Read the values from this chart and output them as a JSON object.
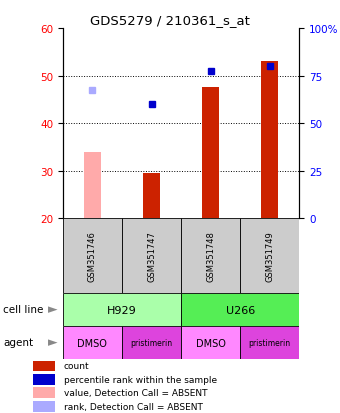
{
  "title": "GDS5279 / 210361_s_at",
  "samples": [
    "GSM351746",
    "GSM351747",
    "GSM351748",
    "GSM351749"
  ],
  "bar_values": [
    34.0,
    29.5,
    47.5,
    53.0
  ],
  "bar_colors": [
    "#ffaaaa",
    "#cc2200",
    "#cc2200",
    "#cc2200"
  ],
  "bar_absent": [
    true,
    false,
    false,
    false
  ],
  "dot_values": [
    47.0,
    44.0,
    51.0,
    52.0
  ],
  "dot_colors": [
    "#aaaaff",
    "#0000cc",
    "#0000cc",
    "#0000cc"
  ],
  "dot_absent": [
    true,
    false,
    false,
    false
  ],
  "ymin": 20,
  "ymax": 60,
  "yticks_left": [
    20,
    30,
    40,
    50,
    60
  ],
  "right_tick_positions": [
    20,
    30,
    40,
    50,
    60
  ],
  "right_tick_labels": [
    "0",
    "25",
    "50",
    "75",
    "100%"
  ],
  "cell_groups": [
    {
      "label": "H929",
      "start": 0,
      "end": 2,
      "color": "#aaffaa"
    },
    {
      "label": "U266",
      "start": 2,
      "end": 4,
      "color": "#55ee55"
    }
  ],
  "agent_labels": [
    "DMSO",
    "pristimerin",
    "DMSO",
    "pristimerin"
  ],
  "agent_colors": [
    "#ff88ff",
    "#dd44dd",
    "#ff88ff",
    "#dd44dd"
  ],
  "legend_labels": [
    "count",
    "percentile rank within the sample",
    "value, Detection Call = ABSENT",
    "rank, Detection Call = ABSENT"
  ],
  "legend_colors": [
    "#cc2200",
    "#0000cc",
    "#ffaaaa",
    "#aaaaff"
  ],
  "bar_width": 0.28
}
